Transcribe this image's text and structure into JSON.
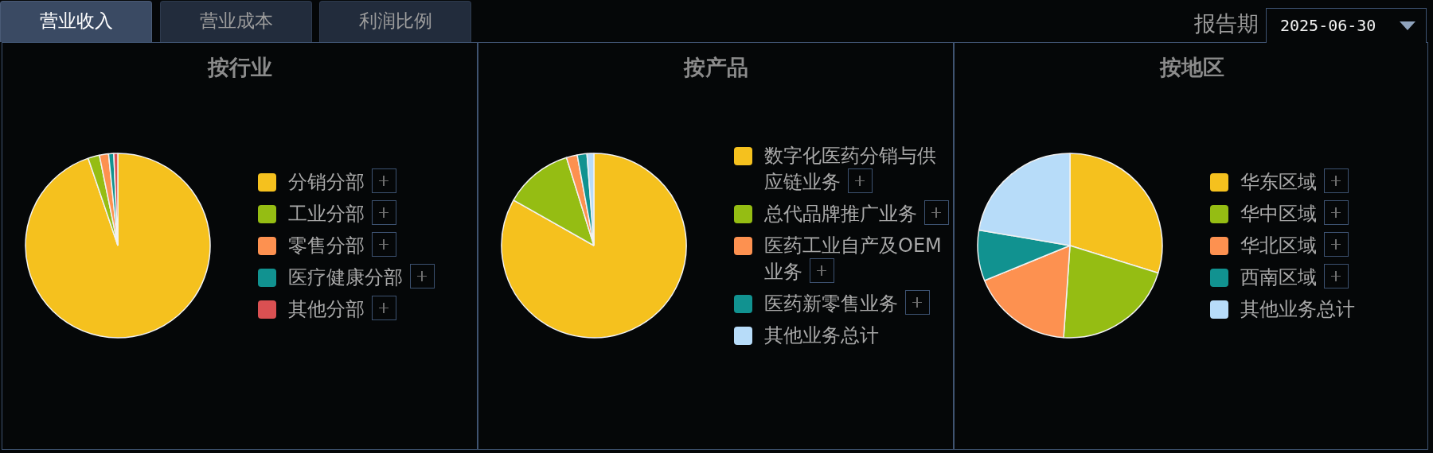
{
  "chart_data": [
    {
      "type": "other",
      "annotations": [
        "营业收入",
        "营业成本",
        "利润比例",
        "报告期",
        "2025-06-30"
      ]
    },
    {
      "type": "pie",
      "title": "按行业",
      "categories": [
        "分销分部",
        "工业分部",
        "零售分部",
        "医疗健康分部",
        "其他分部"
      ],
      "values": [
        94.8,
        2.0,
        1.6,
        0.9,
        0.7
      ],
      "colors": [
        "#f5c11e",
        "#95bd13",
        "#fd9150",
        "#119290",
        "#da5052"
      ],
      "legend": "right"
    },
    {
      "type": "pie",
      "title": "按产品",
      "categories": [
        "数字化医药分销与供应链业务",
        "总代品牌推广业务",
        "医药工业自产及OEM业务",
        "医药新零售业务",
        "其他业务总计"
      ],
      "values": [
        83.2,
        12.0,
        1.9,
        1.7,
        1.2
      ],
      "colors": [
        "#f5c11e",
        "#95bd13",
        "#fd9150",
        "#119290",
        "#b7dcf9"
      ],
      "legend": "right"
    },
    {
      "type": "pie",
      "title": "按地区",
      "categories": [
        "华东区域",
        "华中区域",
        "华北区域",
        "西南区域",
        "其他业务总计"
      ],
      "values": [
        29.8,
        21.3,
        17.7,
        8.9,
        22.3
      ],
      "colors": [
        "#f5c11e",
        "#95bd13",
        "#fd9150",
        "#119290",
        "#b7dcf9"
      ],
      "legend": "right"
    }
  ]
}
